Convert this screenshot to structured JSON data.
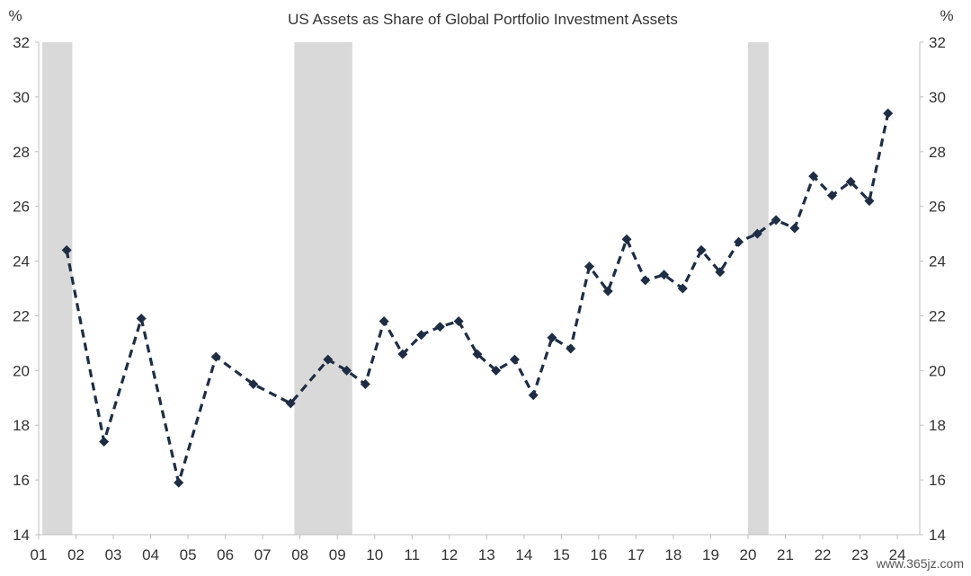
{
  "chart_data": {
    "type": "line",
    "title": "US Assets as Share of Global Portfolio Investment Assets",
    "y_unit_left": "%",
    "y_unit_right": "%",
    "ylim": [
      14,
      32
    ],
    "yticks": [
      14,
      16,
      18,
      20,
      22,
      24,
      26,
      28,
      30,
      32
    ],
    "xlim": [
      2001,
      2024.6
    ],
    "xtick_labels": [
      "01",
      "02",
      "03",
      "04",
      "05",
      "06",
      "07",
      "08",
      "09",
      "10",
      "11",
      "12",
      "13",
      "14",
      "15",
      "16",
      "17",
      "18",
      "19",
      "20",
      "21",
      "22",
      "23",
      "24"
    ],
    "grid": false,
    "line_style": "dashed",
    "marker": "diamond",
    "series": [
      {
        "color": "#1f2d44",
        "x": [
          2001.75,
          2002.75,
          2003.75,
          2004.75,
          2005.75,
          2006.75,
          2007.75,
          2008.75,
          2009.25,
          2009.75,
          2010.25,
          2010.75,
          2011.25,
          2011.75,
          2012.25,
          2012.75,
          2013.25,
          2013.75,
          2014.25,
          2014.75,
          2015.25,
          2015.75,
          2016.25,
          2016.75,
          2017.25,
          2017.75,
          2018.25,
          2018.75,
          2019.25,
          2019.75,
          2020.25,
          2020.75,
          2021.25,
          2021.75,
          2022.25,
          2022.75,
          2023.25,
          2023.75
        ],
        "y": [
          24.4,
          17.4,
          21.9,
          15.9,
          20.5,
          19.5,
          18.8,
          20.4,
          20.0,
          19.5,
          21.8,
          20.6,
          21.3,
          21.6,
          21.8,
          20.6,
          20.0,
          20.4,
          19.1,
          21.2,
          20.8,
          23.8,
          22.9,
          24.8,
          23.3,
          23.5,
          23.0,
          24.4,
          23.6,
          24.7,
          25.0,
          25.5,
          25.2,
          27.1,
          26.4,
          26.9,
          26.2,
          29.4
        ]
      }
    ],
    "shaded_periods": [
      [
        2001.1,
        2001.9
      ],
      [
        2007.85,
        2009.4
      ],
      [
        2020.0,
        2020.55
      ]
    ]
  },
  "watermark": "www.365jz.com"
}
